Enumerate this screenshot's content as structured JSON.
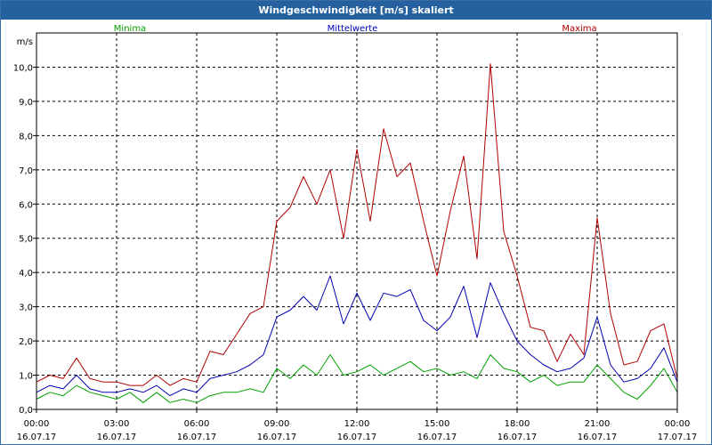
{
  "window": {
    "title": "Windgeschwindigkeit [m/s] skaliert"
  },
  "chart_data": {
    "type": "line",
    "title": "Windgeschwindigkeit [m/s] skaliert",
    "ylabel": "m/s",
    "xlabel": "",
    "ylim": [
      0,
      11
    ],
    "y_ticks": [
      0,
      1,
      2,
      3,
      4,
      5,
      6,
      7,
      8,
      9,
      10
    ],
    "y_tick_labels": [
      "0,0",
      "1,0",
      "2,0",
      "3,0",
      "4,0",
      "5,0",
      "6,0",
      "7,0",
      "8,0",
      "9,0",
      "10,0"
    ],
    "x_range_hours": [
      0,
      24
    ],
    "x_ticks": [
      0,
      3,
      6,
      9,
      12,
      15,
      18,
      21,
      24
    ],
    "x_tick_times": [
      "00:00",
      "03:00",
      "06:00",
      "09:00",
      "12:00",
      "15:00",
      "18:00",
      "21:00",
      "00:00"
    ],
    "x_tick_dates": [
      "16.07.17",
      "16.07.17",
      "16.07.17",
      "16.07.17",
      "16.07.17",
      "16.07.17",
      "16.07.17",
      "16.07.17",
      "17.07.17"
    ],
    "grid": true,
    "series": [
      {
        "name": "Minima",
        "color": "#00a000",
        "x": [
          0,
          0.5,
          1,
          1.5,
          2,
          2.5,
          3,
          3.5,
          4,
          4.5,
          5,
          5.5,
          6,
          6.5,
          7,
          7.5,
          8,
          8.5,
          9,
          9.5,
          10,
          10.5,
          11,
          11.5,
          12,
          12.5,
          13,
          13.5,
          14,
          14.5,
          15,
          15.5,
          16,
          16.5,
          17,
          17.5,
          18,
          18.5,
          19,
          19.5,
          20,
          20.5,
          21,
          21.5,
          22,
          22.5,
          23,
          23.5,
          24
        ],
        "values": [
          0.3,
          0.5,
          0.4,
          0.7,
          0.5,
          0.4,
          0.3,
          0.5,
          0.2,
          0.5,
          0.2,
          0.3,
          0.2,
          0.4,
          0.5,
          0.5,
          0.6,
          0.5,
          1.2,
          0.9,
          1.3,
          1.0,
          1.6,
          1.0,
          1.1,
          1.3,
          1.0,
          1.2,
          1.4,
          1.1,
          1.2,
          1.0,
          1.1,
          0.9,
          1.6,
          1.2,
          1.1,
          0.8,
          1.0,
          0.7,
          0.8,
          0.8,
          1.3,
          0.9,
          0.5,
          0.3,
          0.7,
          1.2,
          0.5
        ]
      },
      {
        "name": "Mittelwerte",
        "color": "#0000b0",
        "x": [
          0,
          0.5,
          1,
          1.5,
          2,
          2.5,
          3,
          3.5,
          4,
          4.5,
          5,
          5.5,
          6,
          6.5,
          7,
          7.5,
          8,
          8.5,
          9,
          9.5,
          10,
          10.5,
          11,
          11.5,
          12,
          12.5,
          13,
          13.5,
          14,
          14.5,
          15,
          15.5,
          16,
          16.5,
          17,
          17.5,
          18,
          18.5,
          19,
          19.5,
          20,
          20.5,
          21,
          21.5,
          22,
          22.5,
          23,
          23.5,
          24
        ],
        "values": [
          0.5,
          0.7,
          0.6,
          1.0,
          0.6,
          0.5,
          0.5,
          0.6,
          0.5,
          0.7,
          0.4,
          0.6,
          0.5,
          0.9,
          1.0,
          1.1,
          1.3,
          1.6,
          2.7,
          2.9,
          3.3,
          2.9,
          3.9,
          2.5,
          3.4,
          2.6,
          3.4,
          3.3,
          3.5,
          2.6,
          2.3,
          2.7,
          3.6,
          2.1,
          3.7,
          2.8,
          2.0,
          1.6,
          1.3,
          1.1,
          1.2,
          1.5,
          2.7,
          1.3,
          0.8,
          0.9,
          1.2,
          1.8,
          0.8
        ]
      },
      {
        "name": "Maxima",
        "color": "#b00000",
        "x": [
          0,
          0.5,
          1,
          1.5,
          2,
          2.5,
          3,
          3.5,
          4,
          4.5,
          5,
          5.5,
          6,
          6.5,
          7,
          7.5,
          8,
          8.5,
          9,
          9.5,
          10,
          10.5,
          11,
          11.5,
          12,
          12.5,
          13,
          13.5,
          14,
          14.5,
          15,
          15.5,
          16,
          16.5,
          17,
          17.5,
          18,
          18.5,
          19,
          19.5,
          20,
          20.5,
          21,
          21.5,
          22,
          22.5,
          23,
          23.5,
          24
        ],
        "values": [
          0.8,
          1.0,
          0.9,
          1.5,
          0.9,
          0.8,
          0.8,
          0.7,
          0.7,
          1.0,
          0.7,
          0.9,
          0.8,
          1.7,
          1.6,
          2.2,
          2.8,
          3.0,
          5.5,
          5.9,
          6.8,
          6.0,
          7.0,
          5.0,
          7.6,
          5.5,
          8.2,
          6.8,
          7.2,
          5.5,
          3.9,
          5.8,
          7.4,
          4.4,
          10.1,
          5.2,
          3.9,
          2.4,
          2.3,
          1.4,
          2.2,
          1.6,
          5.6,
          2.8,
          1.3,
          1.4,
          2.3,
          2.5,
          0.9
        ]
      }
    ]
  }
}
